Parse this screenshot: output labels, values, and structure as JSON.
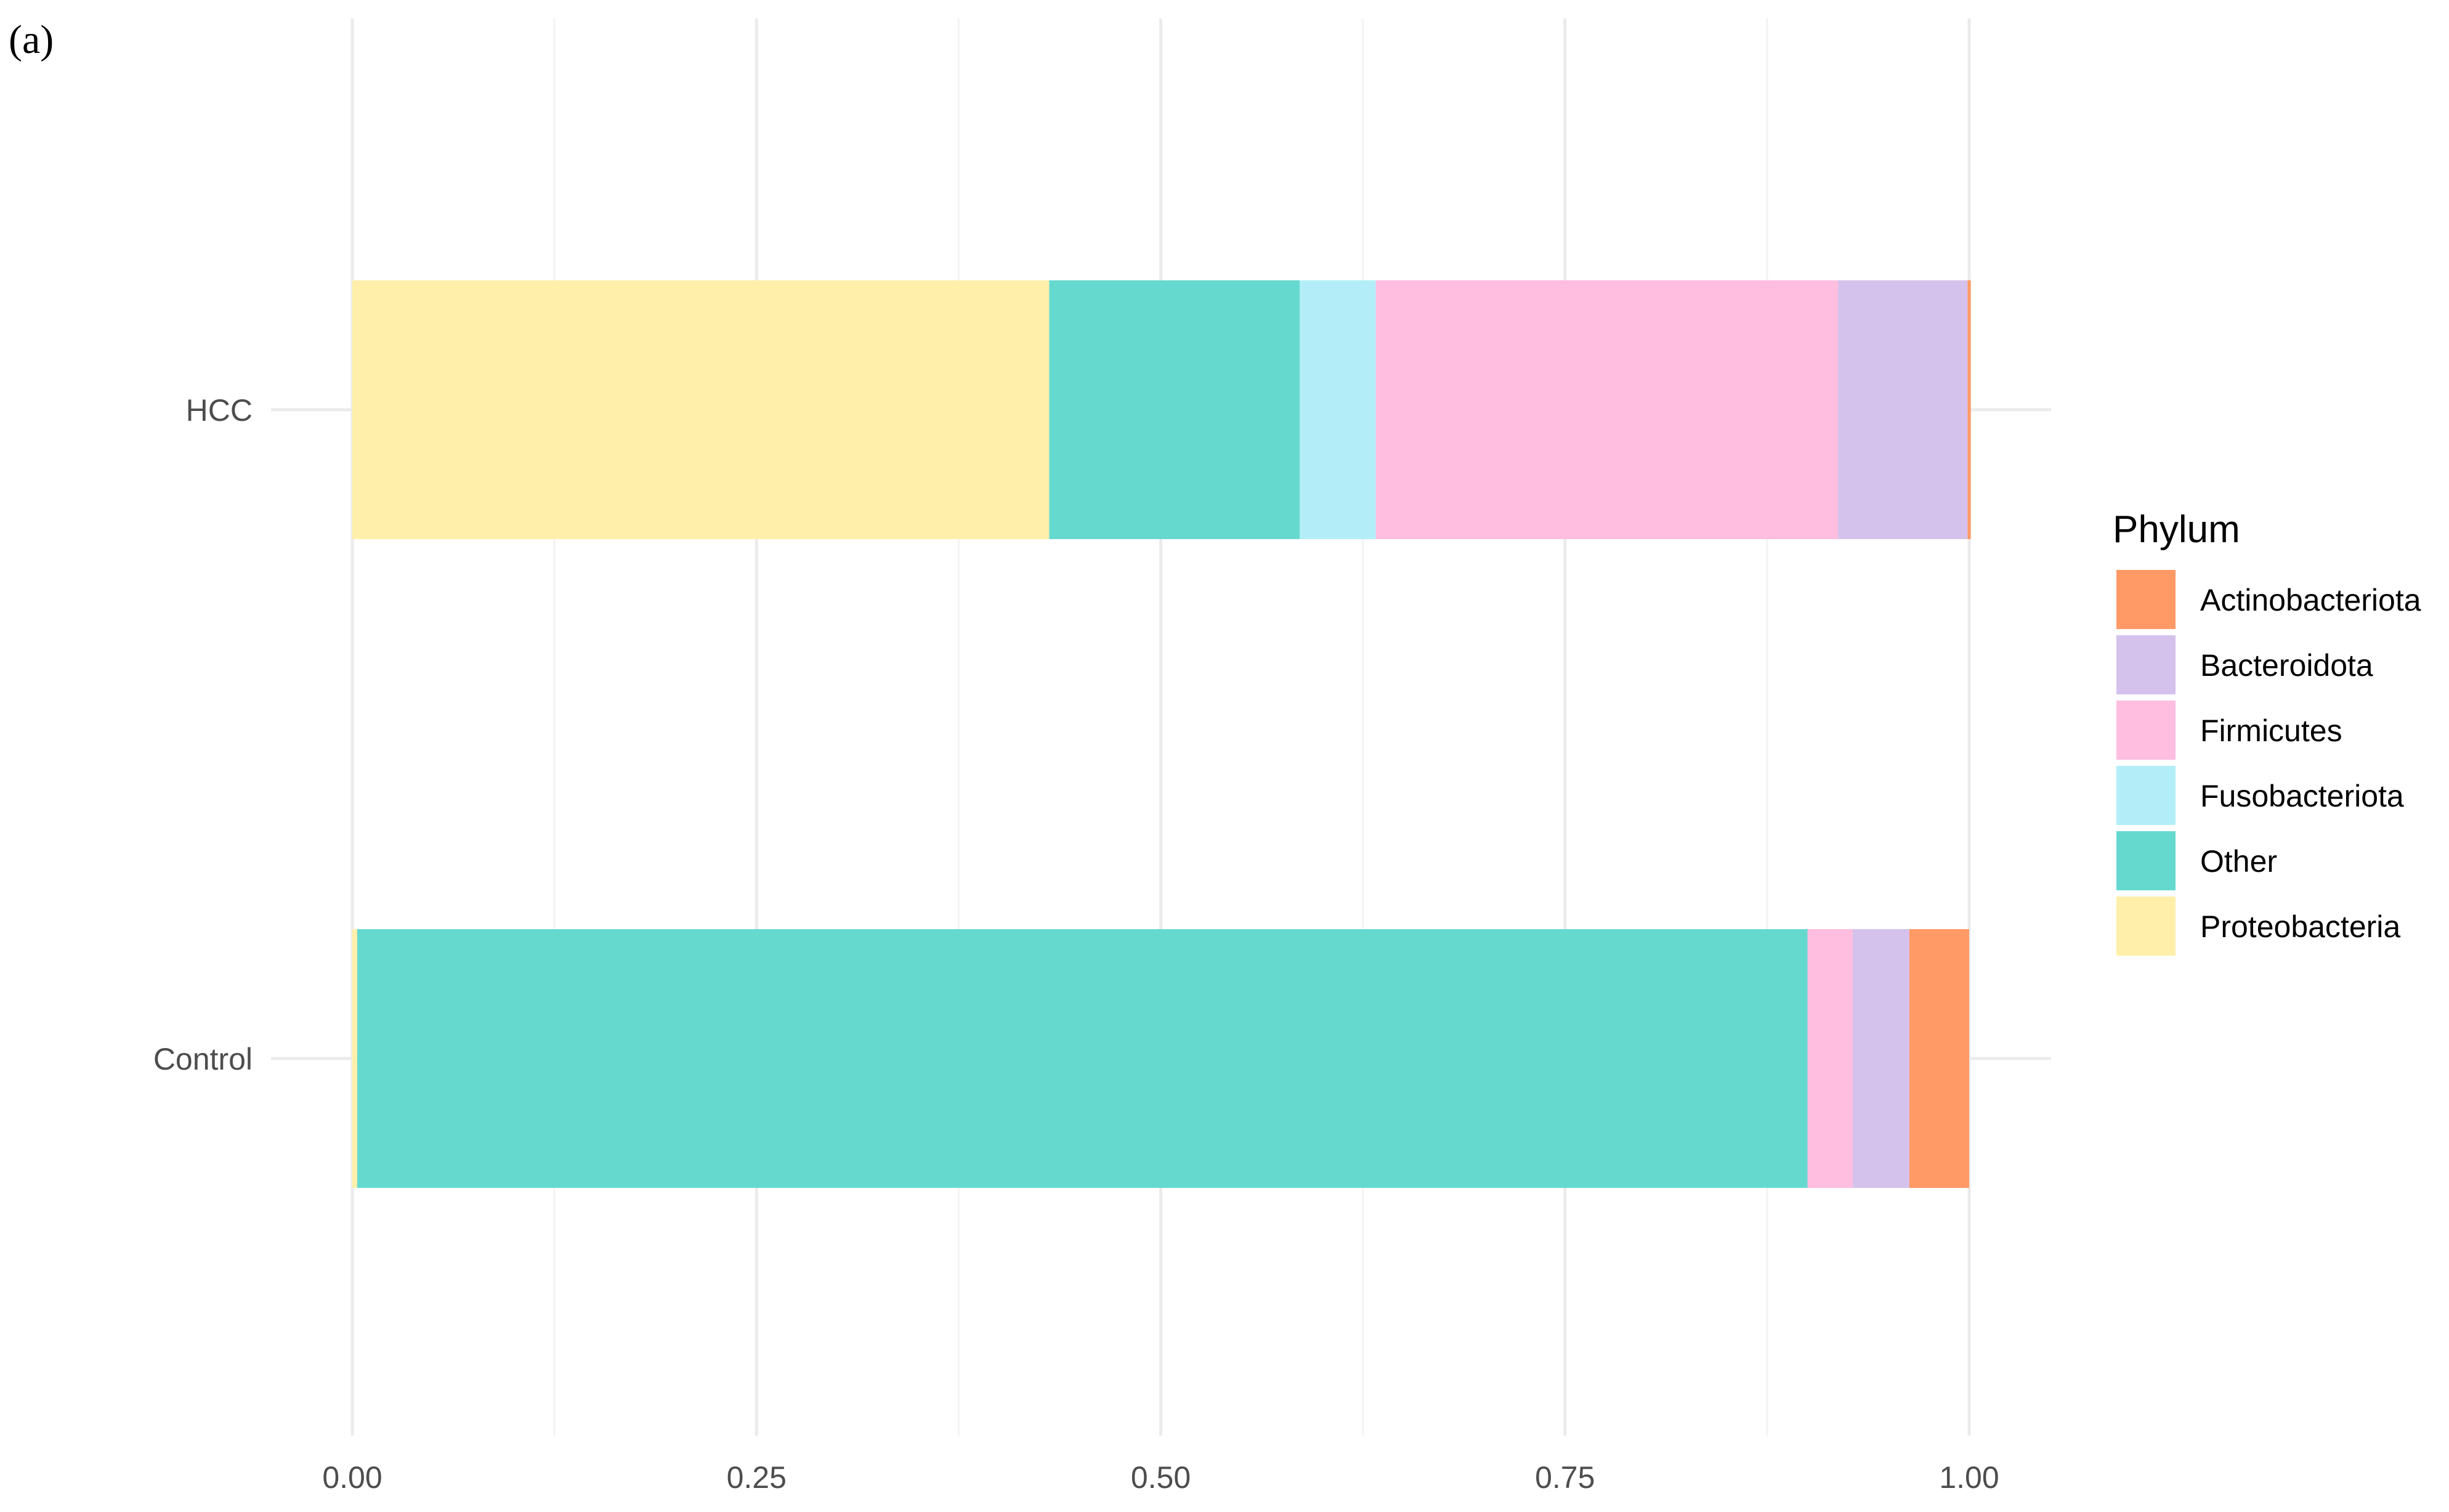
{
  "panel_label": "(a)",
  "chart_data": {
    "type": "bar",
    "orientation": "horizontal",
    "stacked": true,
    "categories": [
      "HCC",
      "Control"
    ],
    "series": [
      {
        "name": "Proteobacteria",
        "color": "#FFEFAA",
        "values": [
          0.431,
          0.003
        ]
      },
      {
        "name": "Other",
        "color": "#66D9CF",
        "values": [
          0.155,
          0.897
        ]
      },
      {
        "name": "Fusobacteriota",
        "color": "#B3EEF8",
        "values": [
          0.047,
          0.0
        ]
      },
      {
        "name": "Firmicutes",
        "color": "#FFBDE0",
        "values": [
          0.286,
          0.028
        ]
      },
      {
        "name": "Bacteroidota",
        "color": "#D4C2EC",
        "values": [
          0.08,
          0.035
        ]
      },
      {
        "name": "Actinobacteriota",
        "color": "#FF9966",
        "values": [
          0.002,
          0.037
        ]
      }
    ],
    "xlim": [
      0,
      1
    ],
    "xticks": [
      "0.00",
      "0.25",
      "0.50",
      "0.75",
      "1.00"
    ],
    "xtick_values": [
      0,
      0.25,
      0.5,
      0.75,
      1.0
    ],
    "xlabel": "",
    "ylabel": "",
    "grid": true,
    "legend": {
      "title": "Phylum",
      "placement": "right",
      "entries": [
        "Actinobacteriota",
        "Bacteroidota",
        "Firmicutes",
        "Fusobacteriota",
        "Other",
        "Proteobacteria"
      ]
    }
  }
}
